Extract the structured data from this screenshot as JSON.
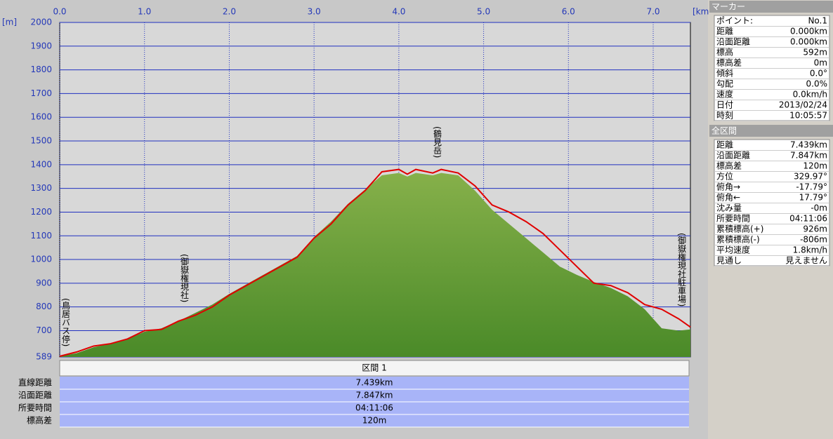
{
  "chart_data": {
    "type": "area-line",
    "x_label": "[km]",
    "y_label": "[m]",
    "xlim": [
      0,
      7.439
    ],
    "ylim": [
      589,
      2000
    ],
    "xticks": [
      {
        "value": 0,
        "label": "0.0"
      },
      {
        "value": 1,
        "label": "1.0"
      },
      {
        "value": 2,
        "label": "2.0"
      },
      {
        "value": 3,
        "label": "3.0"
      },
      {
        "value": 4,
        "label": "4.0"
      },
      {
        "value": 5,
        "label": "5.0"
      },
      {
        "value": 6,
        "label": "6.0"
      },
      {
        "value": 7,
        "label": "7.0"
      }
    ],
    "yticks": [
      589,
      700,
      800,
      900,
      1000,
      1100,
      1200,
      1300,
      1400,
      1500,
      1600,
      1700,
      1800,
      1900,
      2000
    ],
    "grid": true,
    "x": [
      0,
      0.2,
      0.4,
      0.6,
      0.8,
      1.0,
      1.2,
      1.4,
      1.6,
      1.8,
      2.0,
      2.2,
      2.4,
      2.6,
      2.8,
      3.0,
      3.2,
      3.4,
      3.6,
      3.8,
      4.0,
      4.1,
      4.2,
      4.4,
      4.5,
      4.7,
      4.9,
      5.1,
      5.3,
      5.5,
      5.7,
      5.9,
      6.1,
      6.3,
      6.5,
      6.7,
      6.9,
      7.1,
      7.3,
      7.439
    ],
    "series": [
      {
        "name": "terrain",
        "color": "#5a9a30",
        "values": [
          592,
          605,
          630,
          645,
          665,
          695,
          710,
          740,
          775,
          810,
          855,
          895,
          935,
          975,
          1015,
          1095,
          1160,
          1235,
          1295,
          1355,
          1365,
          1350,
          1365,
          1355,
          1365,
          1355,
          1290,
          1210,
          1150,
          1090,
          1030,
          970,
          935,
          905,
          880,
          845,
          790,
          710,
          700,
          705
        ]
      },
      {
        "name": "track",
        "color": "#e00000",
        "values": [
          592,
          610,
          635,
          645,
          665,
          700,
          705,
          740,
          765,
          800,
          850,
          890,
          930,
          970,
          1010,
          1090,
          1150,
          1230,
          1290,
          1370,
          1380,
          1360,
          1380,
          1365,
          1380,
          1365,
          1310,
          1230,
          1200,
          1160,
          1110,
          1040,
          970,
          900,
          890,
          860,
          810,
          790,
          750,
          715
        ]
      }
    ],
    "annotations": [
      "(鳥居バス停)",
      "(御嶽権現社)",
      "(鶴見岳)",
      "(御嶽権現社駐車場)"
    ]
  },
  "bottom_table": {
    "header": "区間 1",
    "rows": [
      [
        "直線距離",
        "7.439km"
      ],
      [
        "沿面距離",
        "7.847km"
      ],
      [
        "所要時間",
        "04:11:06"
      ],
      [
        "標高差",
        "120m"
      ]
    ]
  },
  "marker_panel": {
    "title": "マーカー",
    "rows": [
      [
        "ポイント:",
        "No.1"
      ],
      [
        "距離",
        "0.000km"
      ],
      [
        "沿面距離",
        "0.000km"
      ],
      [
        "標高",
        "592m"
      ],
      [
        "標高差",
        "0m"
      ],
      [
        "傾斜",
        "0.0°"
      ],
      [
        "勾配",
        "0.0%"
      ],
      [
        "速度",
        "0.0km/h"
      ],
      [
        "日付",
        "2013/02/24"
      ],
      [
        "時刻",
        "10:05:57"
      ]
    ]
  },
  "total_panel": {
    "title": "全区間",
    "rows": [
      [
        "距離",
        "7.439km"
      ],
      [
        "沿面距離",
        "7.847km"
      ],
      [
        "標高差",
        "120m"
      ],
      [
        "方位",
        "329.97°"
      ],
      [
        "俯角→",
        "-17.79°"
      ],
      [
        "俯角←",
        "17.79°"
      ],
      [
        "沈み量",
        "-0m"
      ],
      [
        "所要時間",
        "04:11:06"
      ],
      [
        "累積標高(+)",
        "926m"
      ],
      [
        "累積標高(-)",
        "-806m"
      ],
      [
        "平均速度",
        "1.8km/h"
      ],
      [
        "見通し",
        "見えません"
      ]
    ]
  }
}
